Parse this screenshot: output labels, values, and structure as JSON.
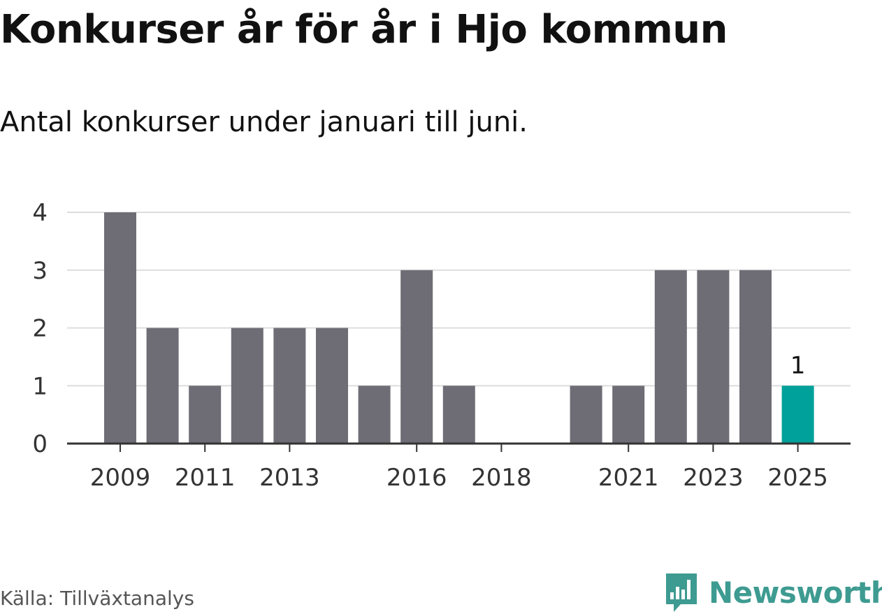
{
  "title": "Konkurser år för år i Hjo kommun",
  "subtitle": "Antal konkurser under januari till juni.",
  "source": "Källa: Tillväxtanalys",
  "brand": {
    "name": "Newsworthy",
    "icon": "bar-chart-speech-bubble-icon",
    "color": "#3e9b91"
  },
  "colors": {
    "bar": "#6e6d75",
    "highlight": "#00a19a",
    "grid": "#dddddd",
    "axis": "#333333"
  },
  "chart_data": {
    "type": "bar",
    "title": "Konkurser år för år i Hjo kommun",
    "subtitle": "Antal konkurser under januari till juni.",
    "categories": [
      2009,
      2010,
      2011,
      2012,
      2013,
      2014,
      2015,
      2016,
      2017,
      2018,
      2019,
      2020,
      2021,
      2022,
      2023,
      2024,
      2025
    ],
    "values": [
      4,
      2,
      1,
      2,
      2,
      2,
      1,
      3,
      1,
      0,
      0,
      1,
      1,
      3,
      3,
      3,
      1
    ],
    "highlight": {
      "category": 2025,
      "value_label": "1"
    },
    "x_tick_labels": [
      "2009",
      "2011",
      "2013",
      "2016",
      "2018",
      "2021",
      "2023",
      "2025"
    ],
    "y_ticks": [
      0,
      1,
      2,
      3,
      4
    ],
    "ylim": [
      0,
      4
    ],
    "grid": true,
    "xlabel": "",
    "ylabel": ""
  }
}
